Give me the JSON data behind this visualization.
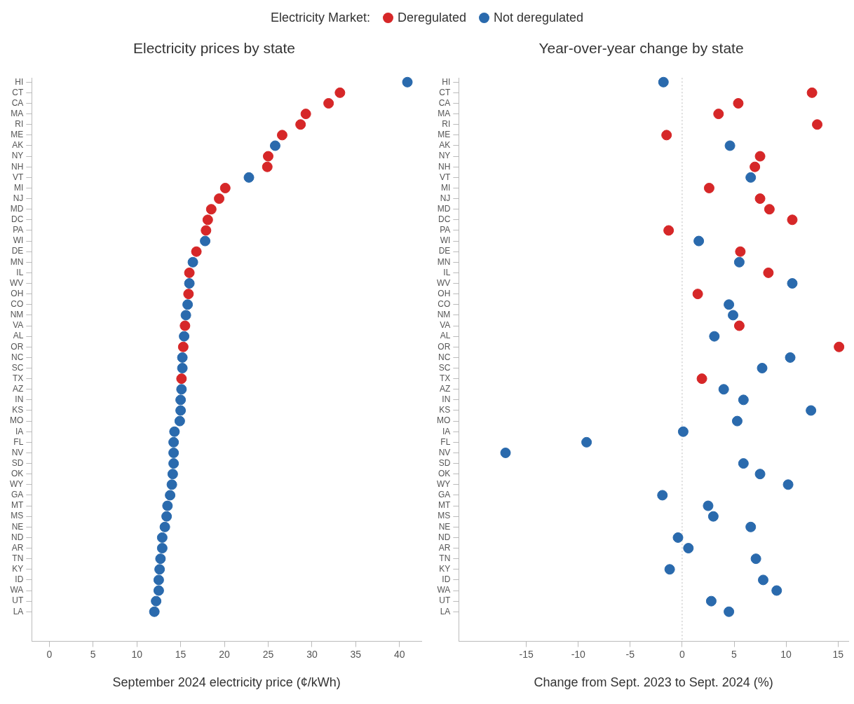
{
  "chart_data": [
    {
      "type": "scatter",
      "orientation": "horizontal",
      "title": "Electricity prices by state",
      "xlabel": "September 2024 electricity price (¢/kWh)",
      "legend_title": "Electricity Market:",
      "legend": "top",
      "marker": "circle",
      "grid": false,
      "categories": [
        "HI",
        "CT",
        "CA",
        "MA",
        "RI",
        "ME",
        "AK",
        "NY",
        "NH",
        "VT",
        "MI",
        "NJ",
        "MD",
        "DC",
        "PA",
        "WI",
        "DE",
        "MN",
        "IL",
        "WV",
        "OH",
        "CO",
        "NM",
        "VA",
        "AL",
        "OR",
        "NC",
        "SC",
        "TX",
        "AZ",
        "IN",
        "KS",
        "MO",
        "IA",
        "FL",
        "NV",
        "SD",
        "OK",
        "WY",
        "GA",
        "MT",
        "MS",
        "NE",
        "ND",
        "AR",
        "TN",
        "KY",
        "ID",
        "WA",
        "UT",
        "LA"
      ],
      "xlim": [
        -2,
        42.5
      ],
      "xticks": [
        0,
        5,
        10,
        15,
        20,
        25,
        30,
        35,
        40
      ],
      "series": [
        {
          "name": "Deregulated",
          "color": "#d62728",
          "values": [
            null,
            33.2,
            31.9,
            29.3,
            28.7,
            26.6,
            null,
            25.0,
            24.9,
            null,
            20.1,
            19.4,
            18.5,
            18.1,
            17.9,
            null,
            16.8,
            null,
            16.0,
            null,
            15.9,
            null,
            null,
            15.5,
            null,
            15.3,
            null,
            null,
            15.1,
            null,
            null,
            null,
            null,
            null,
            null,
            null,
            null,
            null,
            null,
            null,
            null,
            null,
            null,
            null,
            null,
            null,
            null,
            null,
            null,
            null,
            null
          ]
        },
        {
          "name": "Not deregulated",
          "color": "#2a6aad",
          "values": [
            40.9,
            null,
            null,
            null,
            null,
            null,
            25.8,
            null,
            null,
            22.8,
            null,
            null,
            null,
            null,
            null,
            17.8,
            null,
            16.4,
            null,
            16.0,
            null,
            15.8,
            15.6,
            null,
            15.4,
            null,
            15.2,
            15.2,
            null,
            15.1,
            15.0,
            15.0,
            14.9,
            14.3,
            14.2,
            14.2,
            14.2,
            14.1,
            14.0,
            13.8,
            13.5,
            13.4,
            13.2,
            12.9,
            12.9,
            12.7,
            12.6,
            12.5,
            12.5,
            12.2,
            12.0
          ]
        }
      ]
    },
    {
      "type": "scatter",
      "orientation": "horizontal",
      "title": "Year-over-year change by state",
      "xlabel": "Change from Sept. 2023 to Sept. 2024 (%)",
      "marker": "circle",
      "grid": false,
      "categories": [
        "HI",
        "CT",
        "CA",
        "MA",
        "RI",
        "ME",
        "AK",
        "NY",
        "NH",
        "VT",
        "MI",
        "NJ",
        "MD",
        "DC",
        "PA",
        "WI",
        "DE",
        "MN",
        "IL",
        "WV",
        "OH",
        "CO",
        "NM",
        "VA",
        "AL",
        "OR",
        "NC",
        "SC",
        "TX",
        "AZ",
        "IN",
        "KS",
        "MO",
        "IA",
        "FL",
        "NV",
        "SD",
        "OK",
        "WY",
        "GA",
        "MT",
        "MS",
        "NE",
        "ND",
        "AR",
        "TN",
        "KY",
        "ID",
        "WA",
        "UT",
        "LA"
      ],
      "xlim": [
        -21.5,
        16
      ],
      "xticks": [
        -15,
        -10,
        -5,
        0,
        5,
        10,
        15
      ],
      "ref_lines": [
        {
          "axis": "x",
          "value": 0,
          "color": "#bbbbbb",
          "line_style": "dotted"
        }
      ],
      "series": [
        {
          "color": "#d62728",
          "values": [
            null,
            12.5,
            5.4,
            3.5,
            13.0,
            -1.5,
            null,
            7.5,
            7.0,
            null,
            2.6,
            7.5,
            8.4,
            10.6,
            -1.3,
            null,
            5.6,
            null,
            8.3,
            null,
            1.5,
            null,
            null,
            5.5,
            null,
            15.1,
            null,
            null,
            1.9,
            null,
            null,
            null,
            null,
            null,
            null,
            null,
            null,
            null,
            null,
            null,
            null,
            null,
            null,
            null,
            null,
            null,
            null,
            null,
            null,
            null,
            null
          ]
        },
        {
          "color": "#2a6aad",
          "values": [
            -1.8,
            null,
            null,
            null,
            null,
            null,
            4.6,
            null,
            null,
            6.6,
            null,
            null,
            null,
            null,
            null,
            1.6,
            null,
            5.5,
            null,
            10.6,
            null,
            4.5,
            4.9,
            null,
            3.1,
            null,
            10.4,
            7.7,
            null,
            4.0,
            5.9,
            12.4,
            5.3,
            0.1,
            -9.2,
            -17.0,
            5.9,
            7.5,
            10.2,
            -1.9,
            2.5,
            3.0,
            6.6,
            -0.4,
            0.6,
            7.1,
            -1.2,
            7.8,
            9.1,
            2.8,
            4.5
          ]
        }
      ]
    }
  ]
}
